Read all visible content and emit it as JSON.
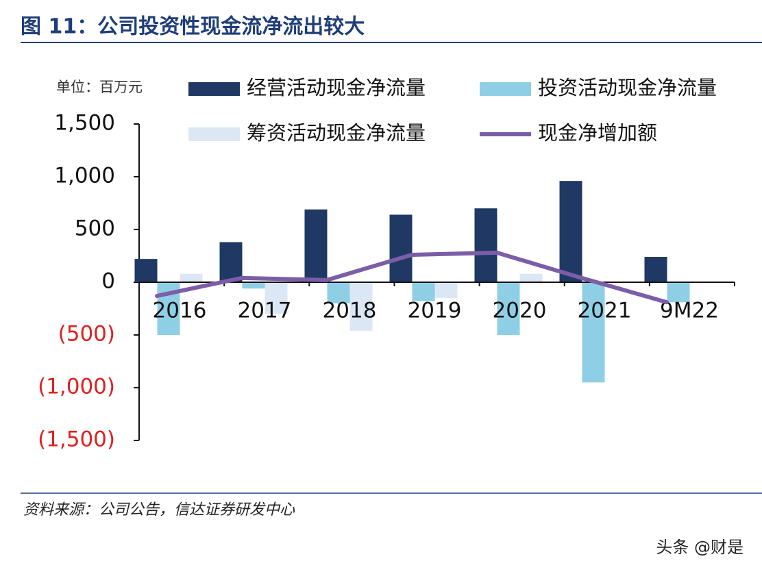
{
  "chart_data": {
    "type": "bar_line",
    "title": "图 11：公司投资性现金流净流出较大",
    "unit_label": "单位：百万元",
    "source": "资料来源：公司公告，信达证券研发中心",
    "watermark": "头条 @财是",
    "categories": [
      "2016",
      "2017",
      "2018",
      "2019",
      "2020",
      "2021",
      "9M22"
    ],
    "series": [
      {
        "name": "经营活动现金净流量",
        "color": "#1f3864",
        "kind": "bar",
        "values": [
          220,
          380,
          690,
          640,
          700,
          960,
          240
        ]
      },
      {
        "name": "投资活动现金净流量",
        "color": "#8ecfe6",
        "kind": "bar",
        "values": [
          -500,
          -60,
          -200,
          -180,
          -500,
          -950,
          -190
        ]
      },
      {
        "name": "筹资活动现金净流量",
        "color": "#dce7f5",
        "kind": "bar",
        "values": [
          80,
          -300,
          -460,
          -150,
          80,
          0,
          0
        ]
      },
      {
        "name": "现金净增加额",
        "color": "#7b5ea7",
        "kind": "line",
        "values": [
          -130,
          40,
          20,
          260,
          280,
          40,
          -190
        ]
      }
    ],
    "ylim": [
      -1500,
      1500
    ],
    "yticks": [
      {
        "value": 1500,
        "label": "1,500"
      },
      {
        "value": 1000,
        "label": "1,000"
      },
      500,
      0,
      {
        "value": -500,
        "label": "(500)"
      },
      {
        "value": -1000,
        "label": "(1,000)"
      },
      {
        "value": -1500,
        "label": "(1,500)"
      }
    ],
    "negative_tick_color": "#e02020"
  }
}
